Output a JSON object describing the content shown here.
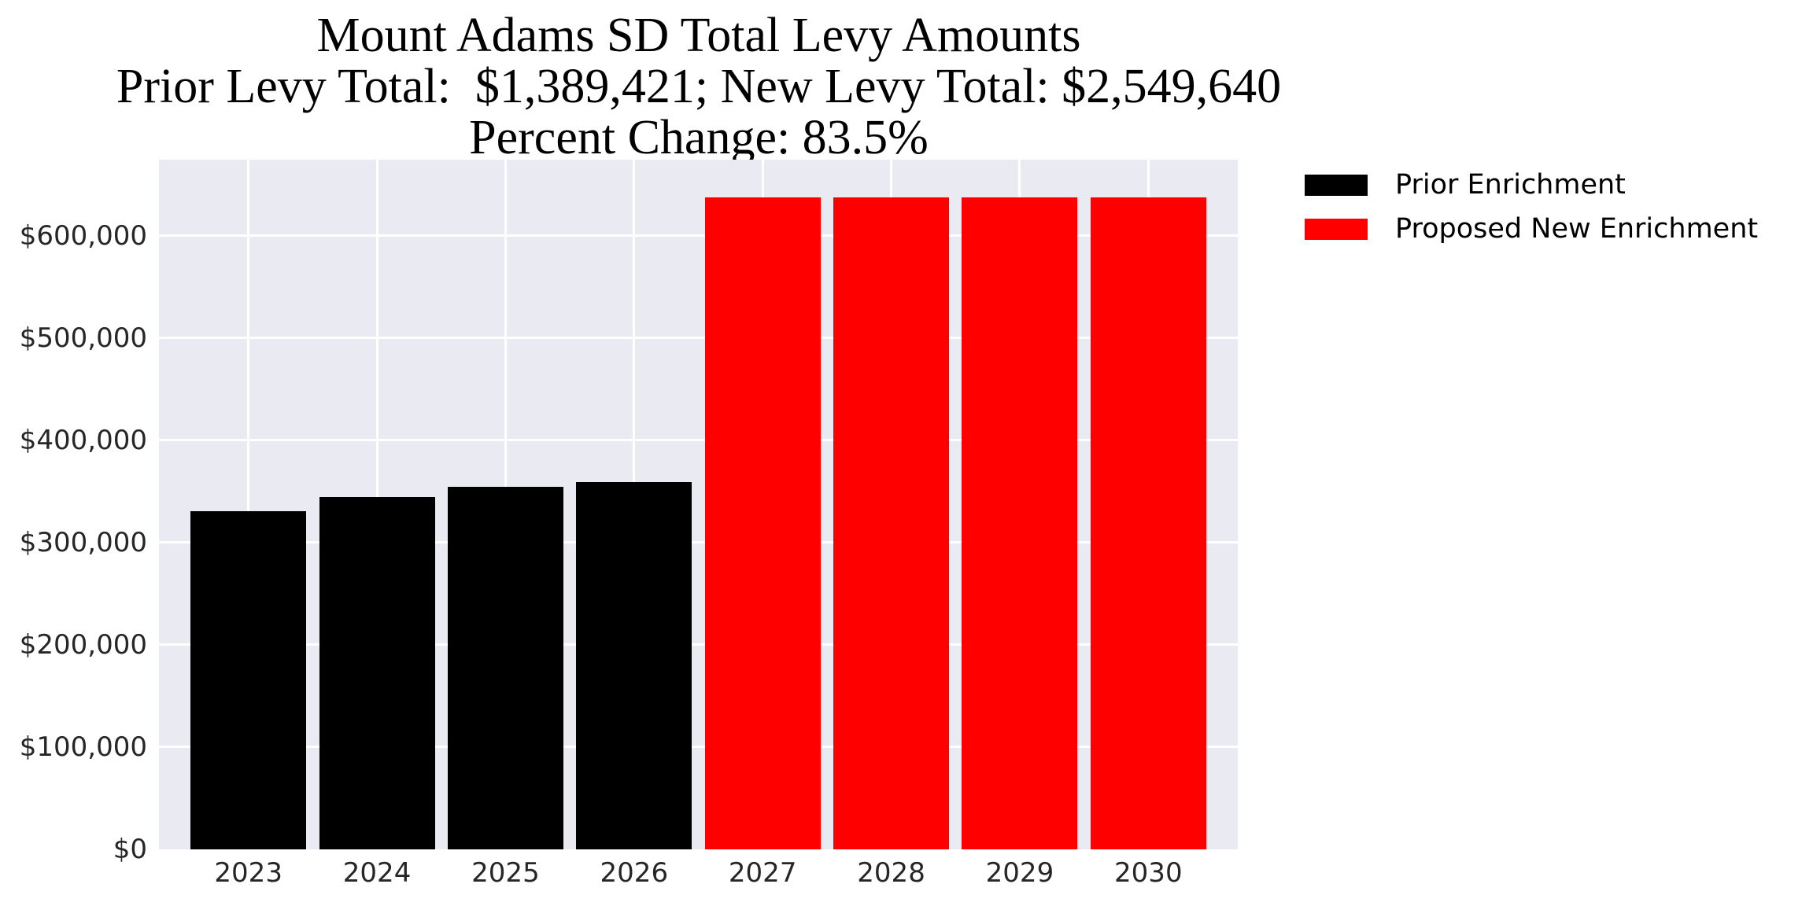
{
  "chart_data": {
    "type": "bar",
    "title": "Mount Adams SD Total Levy Amounts",
    "subtitle_totals": "Prior Levy Total:  $1,389,421; New Levy Total: $2,549,640",
    "subtitle_percent": "Percent Change: 83.5%",
    "prior_levy_total": "$1,389,421",
    "new_levy_total": "$2,549,640",
    "percent_change": "83.5%",
    "categories": [
      "2023",
      "2024",
      "2025",
      "2026",
      "2027",
      "2028",
      "2029",
      "2030"
    ],
    "series": [
      {
        "name": "Prior Enrichment",
        "color": "#000000",
        "values": [
          331000,
          344421,
          355000,
          359000,
          null,
          null,
          null,
          null
        ]
      },
      {
        "name": "Proposed New Enrichment",
        "color": "#ff0000",
        "values": [
          null,
          null,
          null,
          null,
          637410,
          637410,
          637410,
          637410
        ]
      }
    ],
    "xlabel": "",
    "ylabel": "",
    "ylim": [
      0,
      674615
    ],
    "yticks": [
      {
        "value": 0,
        "label": "$0"
      },
      {
        "value": 100000,
        "label": "$100,000"
      },
      {
        "value": 200000,
        "label": "$200,000"
      },
      {
        "value": 300000,
        "label": "$300,000"
      },
      {
        "value": 400000,
        "label": "$400,000"
      },
      {
        "value": 500000,
        "label": "$500,000"
      },
      {
        "value": 600000,
        "label": "$600,000"
      }
    ],
    "grid": true,
    "legend_position": "upper-right-outside"
  },
  "legend": {
    "items": [
      {
        "label": "Prior Enrichment",
        "color": "#000000"
      },
      {
        "label": "Proposed New Enrichment",
        "color": "#ff0000"
      }
    ]
  },
  "colors": {
    "plot_background": "#eaeaf2",
    "gridline": "#ffffff",
    "prior_bar": "#000000",
    "new_bar": "#ff0000",
    "tick_text": "#262626",
    "title_text": "#000000"
  }
}
